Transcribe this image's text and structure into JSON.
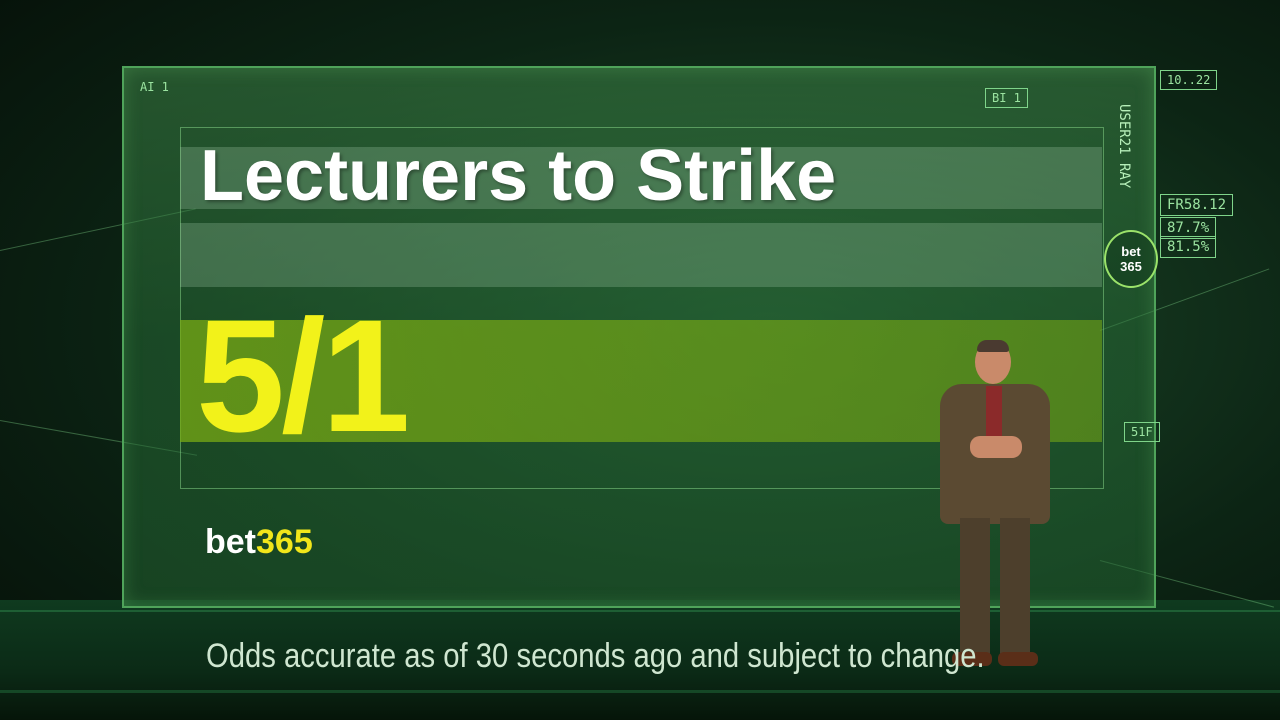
{
  "headline": "Lecturers to Strike",
  "odds": "5/1",
  "logo": {
    "part1": "bet",
    "part2": "365"
  },
  "side_logo": {
    "line1": "bet",
    "line2": "365"
  },
  "disclaimer": "Odds accurate as of 30 seconds ago and subject to change.",
  "hud": {
    "fr_value": "FR58.12",
    "percent_1": "87.7%",
    "percent_2": "81.5%",
    "user_label": "USER21 RAY",
    "corner_label": "BI 1",
    "top_left_label": "AI 1",
    "right_label": "51F",
    "time_label": "10..22"
  },
  "colors": {
    "odds_yellow": "#f2f21a",
    "brand_green": "#4fa35a",
    "logo_yellow": "#f2e61a"
  }
}
